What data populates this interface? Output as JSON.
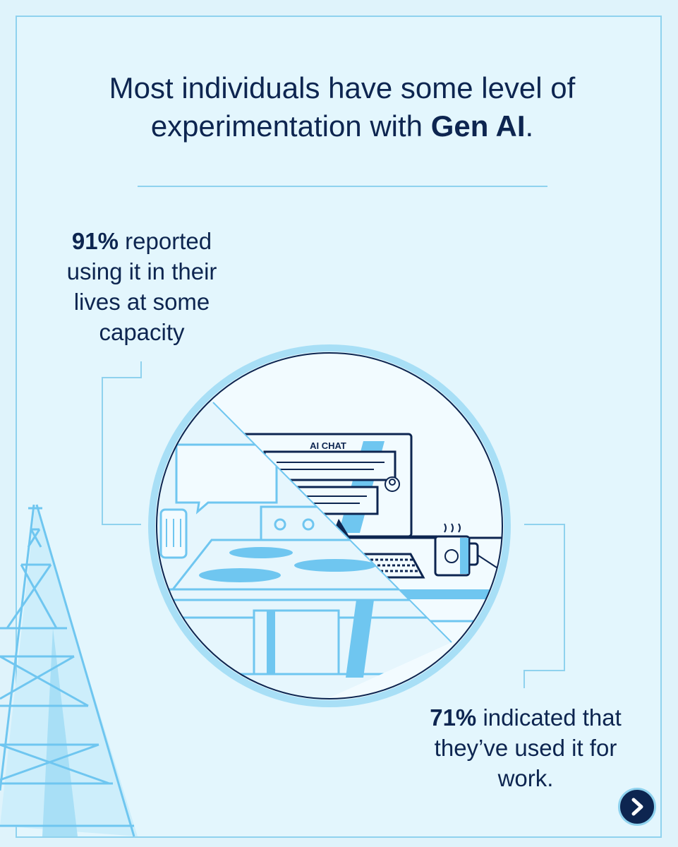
{
  "headline": {
    "line1": "Most individuals have some level of",
    "line2_prefix": "experimentation with ",
    "line2_bold": "Gen AI",
    "line2_suffix": "."
  },
  "stats": [
    {
      "bold": "91%",
      "text": " reported using it in their lives at some capacity"
    },
    {
      "bold": "71%",
      "text": " indicated that they’ve used it for work."
    }
  ],
  "illustration": {
    "screen_label": "AI CHAT",
    "icons": [
      "transmission-tower-icon",
      "chat-bubble-icon",
      "smart-speaker-icon",
      "stove-icon",
      "computer-monitor-icon",
      "keyboard-icon",
      "coffee-mug-icon",
      "user-avatar-icon"
    ]
  },
  "controls": {
    "next_icon": "chevron-right-icon"
  },
  "colors": {
    "background": "#dff3fb",
    "navy": "#0d2550",
    "accent": "#6fc6f0",
    "line": "#8fd2ee"
  }
}
